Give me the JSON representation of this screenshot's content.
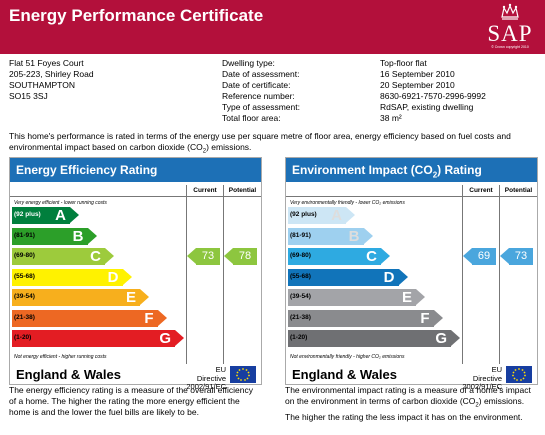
{
  "header": {
    "title": "Energy Performance Certificate",
    "logo_text": "SAP",
    "logo_small": "© Crown copyright 2010"
  },
  "address": [
    "Flat 51 Foyes Court",
    "205-223, Shirley Road",
    "SOUTHAMPTON",
    "SO15 3SJ"
  ],
  "details": [
    {
      "label": "Dwelling type:",
      "value": "Top-floor flat"
    },
    {
      "label": "Date of assessment:",
      "value": "16 September 2010"
    },
    {
      "label": "Date of certificate:",
      "value": "20 September 2010"
    },
    {
      "label": "Reference number:",
      "value": "8630-6921-7570-2996-9992"
    },
    {
      "label": "Type of assessment:",
      "value": "RdSAP, existing dwelling"
    },
    {
      "label": "Total floor area:",
      "value": "38 m²"
    }
  ],
  "intro": {
    "before": "This home's performance is rated in terms of the energy use per square metre of floor area, energy efficiency based on fuel costs and environmental impact based on carbon dioxide (CO",
    "sub": "2",
    "after": ") emissions."
  },
  "columns": {
    "current": "Current",
    "potential": "Potential"
  },
  "footer": {
    "country": "England & Wales",
    "directive_line1": "EU Directive",
    "directive_line2": "2002/91/EC"
  },
  "energy_efficiency": {
    "title": "Energy Efficiency Rating",
    "note_top": "Very energy efficient - lower running costs",
    "note_bottom": "Not energy efficient - higher running costs",
    "current": "73",
    "potential": "78",
    "current_color": "#8dc63f",
    "potential_color": "#8dc63f",
    "bands": [
      {
        "code": "(92 plus)",
        "letter": "A",
        "color": "#007f3d"
      },
      {
        "code": "(81-91)",
        "letter": "B",
        "color": "#2c9f29"
      },
      {
        "code": "(69-80)",
        "letter": "C",
        "color": "#9dcb3c"
      },
      {
        "code": "(55-68)",
        "letter": "D",
        "color": "#fff200"
      },
      {
        "code": "(39-54)",
        "letter": "E",
        "color": "#f7af1d"
      },
      {
        "code": "(21-38)",
        "letter": "F",
        "color": "#ed6823"
      },
      {
        "code": "(1-20)",
        "letter": "G",
        "color": "#e31d23"
      }
    ],
    "description": "The energy efficiency rating is a measure of the overall efficiency of a home. The higher the rating the more energy efficient the home is and the lower the fuel bills are likely to be."
  },
  "environmental_impact": {
    "title_before": "Environment Impact (CO",
    "title_sub": "2",
    "title_after": ") Rating",
    "note_top": "Very environmentally friendly - lower CO₂ emissions",
    "note_bottom": "Not environmentally friendly - higher CO₂ emissions",
    "current": "69",
    "potential": "73",
    "current_color": "#4aa6dd",
    "potential_color": "#4aa6dd",
    "bands": [
      {
        "code": "(92 plus)",
        "letter": "A",
        "color": "#cde6f5"
      },
      {
        "code": "(81-91)",
        "letter": "B",
        "color": "#9ed0ef"
      },
      {
        "code": "(69-80)",
        "letter": "C",
        "color": "#2eaae1"
      },
      {
        "code": "(55-68)",
        "letter": "D",
        "color": "#1174ba"
      },
      {
        "code": "(39-54)",
        "letter": "E",
        "color": "#a3a4a8"
      },
      {
        "code": "(21-38)",
        "letter": "F",
        "color": "#8a8b8e"
      },
      {
        "code": "(1-20)",
        "letter": "G",
        "color": "#6f7073"
      }
    ],
    "desc_before": "The environmental impact rating is a measure of a home's impact on the environment in terms of carbon dioxide (CO",
    "desc_sub": "2",
    "desc_after": ") emissions. The higher the rating the less impact it has on the environment."
  }
}
